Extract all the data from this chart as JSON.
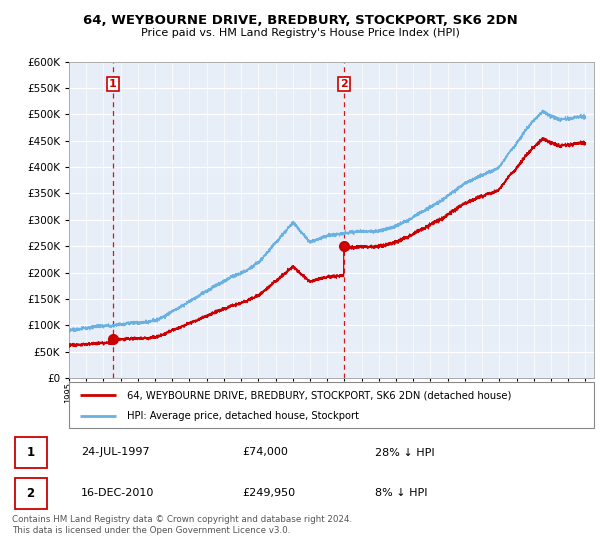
{
  "title": "64, WEYBOURNE DRIVE, BREDBURY, STOCKPORT, SK6 2DN",
  "subtitle": "Price paid vs. HM Land Registry's House Price Index (HPI)",
  "legend_line1": "64, WEYBOURNE DRIVE, BREDBURY, STOCKPORT, SK6 2DN (detached house)",
  "legend_line2": "HPI: Average price, detached house, Stockport",
  "purchase1_date": "24-JUL-1997",
  "purchase1_price": 74000,
  "purchase1_note": "28% ↓ HPI",
  "purchase2_date": "16-DEC-2010",
  "purchase2_price": 249950,
  "purchase2_note": "8% ↓ HPI",
  "footer": "Contains HM Land Registry data © Crown copyright and database right 2024.\nThis data is licensed under the Open Government Licence v3.0.",
  "hpi_color": "#6ab0e0",
  "price_color": "#cc0000",
  "dashed_color": "#cc0000",
  "bg_color": "#e8eef8",
  "grid_color": "#ffffff",
  "ylim_max": 600000,
  "xlim_start": 1995.0,
  "xlim_end": 2025.5,
  "purchase1_year": 1997.558,
  "purchase2_year": 2010.959
}
